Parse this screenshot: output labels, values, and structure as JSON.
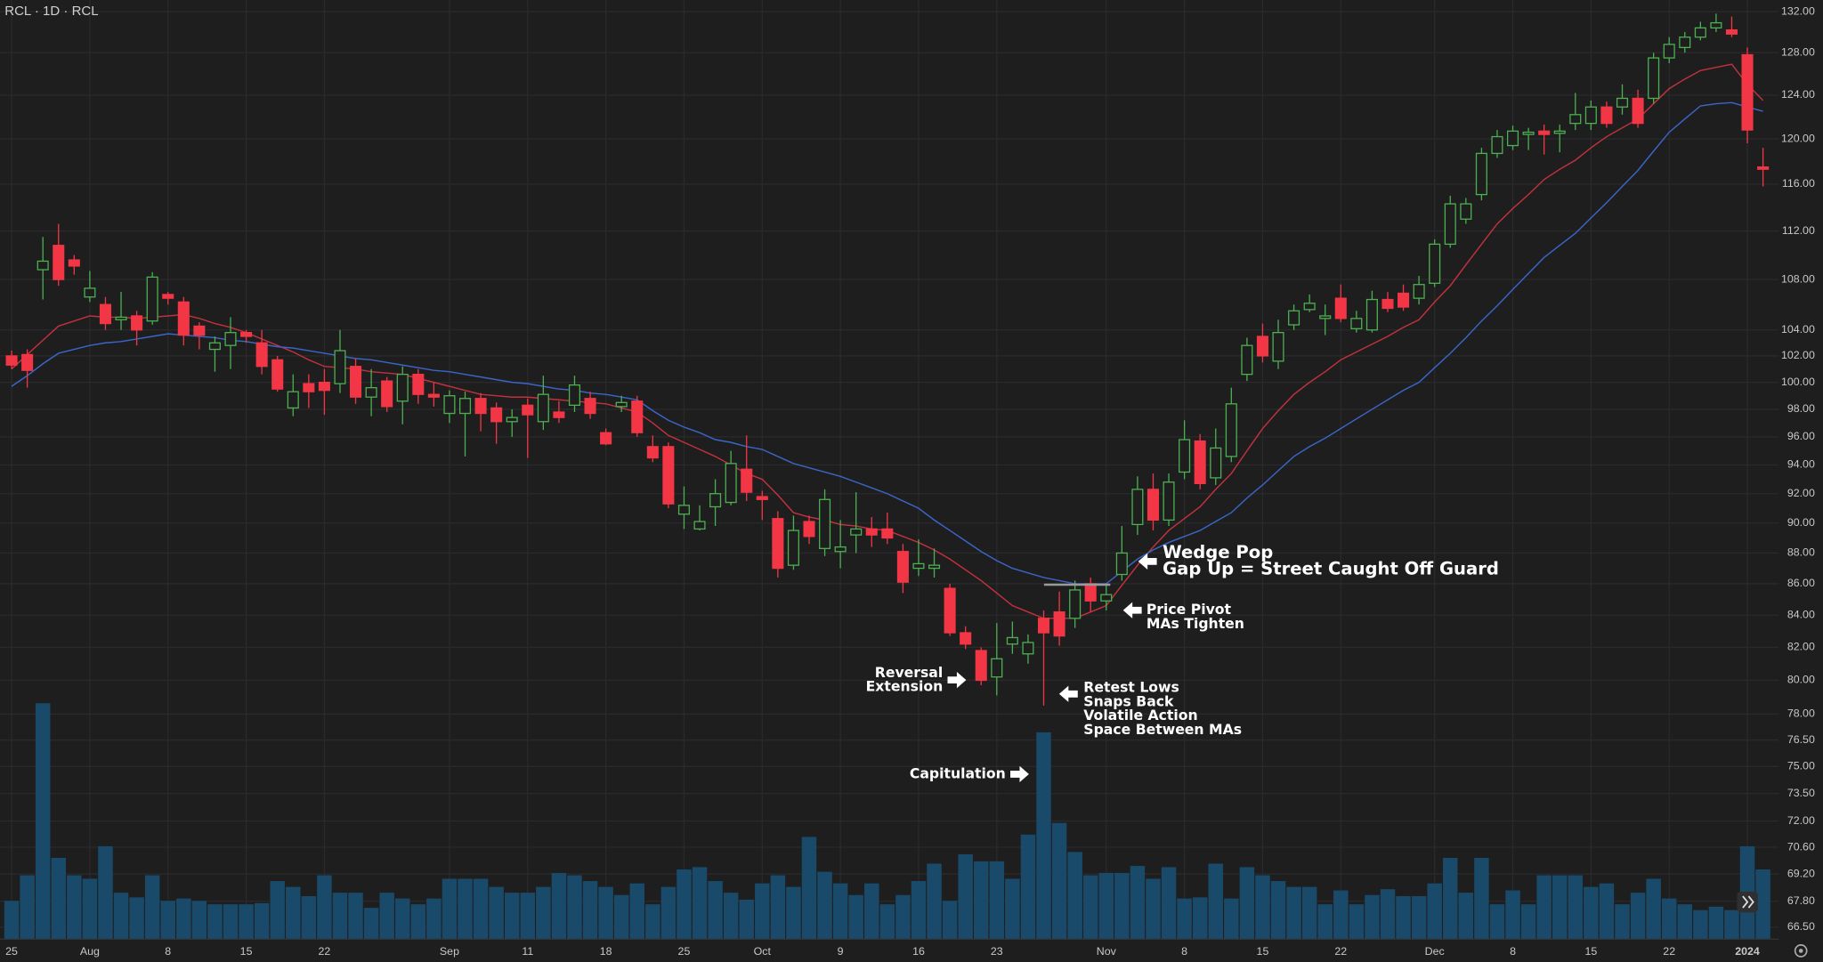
{
  "chart_data": {
    "type": "candlestick",
    "title": "RCL · 1D · RCL",
    "log_scale": true,
    "grid": true,
    "ylim": [
      65.9,
      133.15
    ],
    "yticks": [
      {
        "value": 132,
        "label": "132.00"
      },
      {
        "value": 128,
        "label": "128.00"
      },
      {
        "value": 124,
        "label": "124.00"
      },
      {
        "value": 120,
        "label": "120.00"
      },
      {
        "value": 116,
        "label": "116.00"
      },
      {
        "value": 112,
        "label": "112.00"
      },
      {
        "value": 108,
        "label": "108.00"
      },
      {
        "value": 104,
        "label": "104.00"
      },
      {
        "value": 102,
        "label": "102.00"
      },
      {
        "value": 100,
        "label": "100.00"
      },
      {
        "value": 98,
        "label": "98.00"
      },
      {
        "value": 96,
        "label": "96.00"
      },
      {
        "value": 94,
        "label": "94.00"
      },
      {
        "value": 92,
        "label": "92.00"
      },
      {
        "value": 90,
        "label": "90.00"
      },
      {
        "value": 88,
        "label": "88.00"
      },
      {
        "value": 86,
        "label": "86.00"
      },
      {
        "value": 84,
        "label": "84.00"
      },
      {
        "value": 82,
        "label": "82.00"
      },
      {
        "value": 80,
        "label": "80.00"
      },
      {
        "value": 78,
        "label": "78.00"
      },
      {
        "value": 76.5,
        "label": "76.50"
      },
      {
        "value": 75,
        "label": "75.00"
      },
      {
        "value": 73.5,
        "label": "73.50"
      },
      {
        "value": 72,
        "label": "72.00"
      },
      {
        "value": 70.6,
        "label": "70.60"
      },
      {
        "value": 69.2,
        "label": "69.20"
      },
      {
        "value": 67.8,
        "label": "67.80"
      },
      {
        "value": 66.5,
        "label": "66.50"
      }
    ],
    "categories": [
      "25",
      null,
      null,
      null,
      null,
      "Aug",
      null,
      null,
      null,
      null,
      "8",
      null,
      null,
      null,
      null,
      "15",
      null,
      null,
      null,
      null,
      "22",
      null,
      null,
      null,
      null,
      null,
      null,
      null,
      "Sep",
      null,
      null,
      null,
      null,
      "11",
      null,
      null,
      null,
      null,
      "18",
      null,
      null,
      null,
      null,
      "25",
      null,
      null,
      null,
      null,
      "Oct",
      null,
      null,
      null,
      null,
      "9",
      null,
      null,
      null,
      null,
      "16",
      null,
      null,
      null,
      null,
      "23",
      null,
      null,
      null,
      null,
      null,
      null,
      "Nov",
      null,
      null,
      null,
      null,
      "8",
      null,
      null,
      null,
      null,
      "15",
      null,
      null,
      null,
      null,
      "22",
      null,
      null,
      null,
      null,
      null,
      "Dec",
      null,
      null,
      null,
      null,
      "8",
      null,
      null,
      null,
      null,
      "15",
      null,
      null,
      null,
      null,
      "22",
      null,
      null,
      null,
      null,
      "2024",
      null
    ],
    "open": [
      102,
      102.1,
      108.8,
      110.8,
      109.6,
      106.6,
      106,
      104.8,
      105.1,
      104.7,
      106.8,
      106.2,
      104.3,
      102.5,
      102.8,
      103.8,
      103,
      101.7,
      98.1,
      99.9,
      100,
      99.9,
      101.2,
      98.9,
      100.1,
      98.6,
      100.6,
      99.1,
      97.7,
      97.7,
      98.8,
      98.1,
      97.1,
      98.3,
      97.1,
      97.8,
      98.3,
      98.8,
      96.3,
      98.2,
      98.6,
      95.3,
      95.3,
      90.6,
      89.6,
      91.1,
      91.4,
      93.7,
      91.8,
      90.3,
      87.2,
      90.1,
      88.3,
      88.1,
      89.2,
      89.6,
      89.6,
      88.1,
      87,
      87,
      85.7,
      82.9,
      81.8,
      80.2,
      82.2,
      81.6,
      83.8,
      84.2,
      83.8,
      86,
      84.9,
      86.6,
      89.9,
      92.3,
      90.2,
      93.5,
      95.7,
      93.1,
      94.6,
      100.6,
      103.5,
      101.6,
      104.4,
      105.6,
      104.9,
      106.5,
      104.1,
      104,
      106.4,
      106.9,
      106.5,
      107.7,
      110.9,
      113,
      115.1,
      118.7,
      119.4,
      120.4,
      120.7,
      120.5,
      121.4,
      121.4,
      122.9,
      122.9,
      123.7,
      123.7,
      127.5,
      128.5,
      129.5,
      130.4,
      130.2,
      127.8,
      117.5
    ],
    "high": [
      102.4,
      102.5,
      111.5,
      112.6,
      110,
      108.7,
      106.6,
      107,
      105.5,
      108.6,
      107,
      106.6,
      104.6,
      103.5,
      105,
      104,
      104,
      102,
      100.6,
      100.6,
      101,
      104,
      101.8,
      101,
      100.4,
      101.2,
      101,
      100,
      99.4,
      99.3,
      99.2,
      98.5,
      98,
      98.8,
      100.5,
      98.6,
      100.5,
      99.3,
      96.6,
      99,
      99,
      96.1,
      95.6,
      92.5,
      91.2,
      93,
      95,
      96.1,
      92.2,
      90.8,
      90.5,
      90.5,
      92.3,
      90.2,
      92.1,
      90.4,
      90.7,
      88.6,
      88.9,
      88.3,
      86,
      83.3,
      82,
      83.5,
      83.6,
      82.8,
      84.3,
      85.5,
      86.2,
      86.4,
      86,
      89.8,
      93.2,
      93.4,
      93.4,
      97.2,
      96.2,
      96.6,
      99.6,
      103.4,
      104.5,
      104.8,
      106,
      106.8,
      106,
      107.6,
      105.5,
      107.1,
      107,
      107.6,
      108.3,
      111.3,
      115,
      114.8,
      119.2,
      120.8,
      121.2,
      121,
      121.3,
      121.3,
      124.2,
      123.5,
      123.4,
      125,
      124.5,
      128,
      129.5,
      130,
      131,
      131.8,
      131.5,
      128.5,
      119.2
    ],
    "low": [
      101,
      99.6,
      106.4,
      107.5,
      108.4,
      106.2,
      104,
      104,
      102.8,
      104.4,
      106,
      102.8,
      102.5,
      100.8,
      101,
      103,
      100.6,
      99.3,
      97.5,
      98.1,
      97.6,
      99.2,
      98.4,
      97.5,
      97.8,
      96.9,
      98.4,
      98.2,
      97,
      94.6,
      96.4,
      95.5,
      96,
      94.5,
      96.5,
      97,
      97.8,
      97.3,
      95.4,
      97.8,
      96,
      94.2,
      91,
      89.6,
      89.5,
      89.8,
      91.2,
      91.5,
      90.2,
      86.4,
      86.9,
      88.6,
      87.8,
      87,
      88,
      88.4,
      88.6,
      85.4,
      86.5,
      86.4,
      82.7,
      81.9,
      79.7,
      79.1,
      81.6,
      81,
      78.5,
      82.1,
      83.2,
      84.2,
      84.3,
      86.2,
      89.2,
      89.5,
      89.8,
      93,
      92.3,
      92.6,
      94.2,
      100.1,
      101.5,
      101,
      104,
      105.4,
      103.6,
      104.6,
      103.8,
      103.8,
      105.4,
      105.5,
      106,
      107.4,
      110.6,
      112.6,
      114.6,
      118.3,
      119,
      119,
      118.6,
      118.8,
      120.8,
      120.8,
      121,
      122.2,
      121,
      123.2,
      127,
      128,
      129.2,
      130,
      129.5,
      119.6,
      115.8
    ],
    "close": [
      101.3,
      100.9,
      109.5,
      108,
      109.1,
      107.3,
      104.5,
      105,
      104,
      108.2,
      106.5,
      103.6,
      103.6,
      103,
      103.8,
      103.5,
      101.2,
      99.5,
      99.3,
      99.3,
      99.4,
      102.4,
      98.9,
      99.6,
      98.2,
      100.6,
      99.1,
      98.9,
      99,
      98.8,
      97.7,
      97.1,
      97.4,
      97.6,
      99.1,
      97.4,
      99.8,
      97.7,
      95.5,
      98.5,
      96.3,
      94.5,
      91.3,
      91.2,
      90.1,
      92,
      94.1,
      92.1,
      91.6,
      87,
      89.5,
      89.1,
      91.6,
      88.4,
      89.6,
      89.2,
      89,
      86.1,
      87.3,
      87.2,
      82.9,
      82.2,
      80,
      81.3,
      82.6,
      82.3,
      82.9,
      82.7,
      85.6,
      84.9,
      85.3,
      88,
      92.3,
      90.2,
      92.8,
      95.8,
      92.7,
      95.2,
      98.4,
      102.8,
      102,
      103.8,
      105.5,
      106.1,
      105.1,
      104.9,
      104.9,
      106.4,
      105.7,
      105.8,
      107.6,
      110.9,
      114.3,
      114.3,
      118.7,
      120.2,
      120.7,
      120.6,
      120.4,
      120.7,
      122.2,
      122.9,
      121.4,
      123.7,
      121.4,
      127.5,
      128.8,
      129.5,
      130.4,
      130.9,
      129.8,
      120.8,
      117.3
    ],
    "up_color": "#4caf50",
    "down_color": "#f23645",
    "volume": [
      3.3,
      5.5,
      20.3,
      7.0,
      5.5,
      5.2,
      8.0,
      4.0,
      3.6,
      5.5,
      3.3,
      3.5,
      3.3,
      3.0,
      3.0,
      3.0,
      3.1,
      5.0,
      4.5,
      3.7,
      5.5,
      4.0,
      4.0,
      2.7,
      4.0,
      3.5,
      3.0,
      3.5,
      5.2,
      5.2,
      5.2,
      4.5,
      4.0,
      4.0,
      4.5,
      5.7,
      5.5,
      5.0,
      4.5,
      3.8,
      4.8,
      3.0,
      4.5,
      6.0,
      6.2,
      5.0,
      4.0,
      3.4,
      4.8,
      5.5,
      4.5,
      8.8,
      5.8,
      4.8,
      3.8,
      4.8,
      3.0,
      3.8,
      5.0,
      6.5,
      3.3,
      7.3,
      6.7,
      6.7,
      5.2,
      9.0,
      17.8,
      10.0,
      7.5,
      5.5,
      5.7,
      5.7,
      6.3,
      5.2,
      6.2,
      3.5,
      3.6,
      6.5,
      3.5,
      6.2,
      5.5,
      5.0,
      4.5,
      4.5,
      3.0,
      4.2,
      3.0,
      3.8,
      4.3,
      3.7,
      3.7,
      4.8,
      7.0,
      4.0,
      7.0,
      3.0,
      4.2,
      3.0,
      5.5,
      5.5,
      5.5,
      4.5,
      4.8,
      3.0,
      4.0,
      5.2,
      3.5,
      3.0,
      2.5,
      2.8,
      2.5,
      8.0,
      6.0
    ],
    "volume_color": "#1a4a6a",
    "volume_ylim": [
      0,
      30
    ],
    "lines": [
      {
        "color": "#c1323c",
        "values": [
          101.0,
          102.1,
          103.2,
          104.3,
          104.7,
          105.1,
          105.0,
          105.0,
          104.9,
          105.0,
          105.1,
          105.2,
          104.9,
          104.5,
          104.2,
          103.8,
          103.3,
          102.8,
          102.3,
          101.7,
          101.2,
          101.1,
          101.0,
          100.8,
          100.7,
          100.6,
          100.3,
          100.0,
          99.7,
          99.4,
          99.1,
          99.0,
          98.9,
          98.9,
          98.8,
          98.7,
          98.6,
          98.5,
          98.4,
          98.1,
          97.8,
          97.0,
          96.1,
          95.6,
          95.1,
          94.6,
          94.0,
          93.4,
          93.0,
          91.9,
          90.7,
          90.4,
          90.2,
          89.9,
          89.8,
          89.6,
          89.5,
          89.1,
          88.7,
          88.2,
          87.6,
          86.9,
          86.2,
          85.4,
          84.6,
          84.2,
          83.8,
          83.8,
          83.8,
          84.2,
          84.6,
          85.9,
          87.2,
          88.4,
          89.5,
          90.3,
          91.1,
          92.3,
          93.4,
          95.0,
          96.6,
          97.9,
          99.1,
          100.0,
          100.8,
          101.7,
          102.3,
          102.9,
          103.5,
          104.2,
          104.8,
          106.2,
          107.5,
          109.2,
          110.9,
          112.6,
          113.9,
          115.1,
          116.4,
          117.3,
          118.1,
          119.2,
          120.2,
          121.0,
          121.8,
          123.2,
          124.6,
          125.5,
          126.3,
          126.6,
          126.9,
          125.0,
          123.5
        ]
      },
      {
        "color": "#3a66c8",
        "values": [
          99.7,
          100.5,
          101.4,
          102.2,
          102.5,
          102.8,
          103.0,
          103.1,
          103.3,
          103.5,
          103.7,
          103.6,
          103.5,
          103.4,
          103.2,
          103.1,
          102.9,
          102.7,
          102.6,
          102.4,
          102.2,
          102.0,
          101.8,
          101.7,
          101.5,
          101.3,
          101.1,
          100.9,
          100.8,
          100.6,
          100.4,
          100.2,
          100.0,
          99.9,
          99.7,
          99.5,
          99.4,
          99.2,
          99.1,
          98.9,
          98.7,
          97.9,
          97.2,
          96.7,
          96.3,
          95.8,
          95.6,
          95.3,
          95.1,
          94.6,
          94.1,
          93.8,
          93.5,
          93.2,
          92.8,
          92.4,
          92.0,
          91.5,
          91.0,
          90.2,
          89.5,
          88.8,
          88.1,
          87.5,
          87.0,
          86.7,
          86.4,
          86.2,
          86.0,
          86.0,
          86.0,
          86.8,
          87.6,
          88.2,
          88.7,
          89.1,
          89.5,
          90.1,
          90.7,
          91.7,
          92.6,
          93.6,
          94.6,
          95.3,
          95.9,
          96.6,
          97.3,
          98.0,
          98.7,
          99.4,
          100.0,
          101.1,
          102.2,
          103.4,
          104.7,
          105.9,
          107.2,
          108.5,
          109.8,
          110.8,
          111.8,
          113.1,
          114.4,
          115.8,
          117.2,
          118.9,
          120.6,
          121.8,
          123.0,
          123.2,
          123.3,
          122.9,
          122.5
        ]
      }
    ],
    "annotations": [
      {
        "lines": [
          "Wedge Pop",
          "Gap Up = Street Caught Off Guard"
        ]
      },
      {
        "lines": [
          "Price Pivot",
          "MAs Tighten"
        ]
      },
      {
        "lines": [
          "Reversal",
          "Extension"
        ]
      },
      {
        "lines": [
          "Retest Lows",
          "Snaps Back",
          "Volatile Action",
          "Space Between MAs"
        ]
      },
      {
        "lines": [
          "Capitulation"
        ]
      }
    ]
  }
}
